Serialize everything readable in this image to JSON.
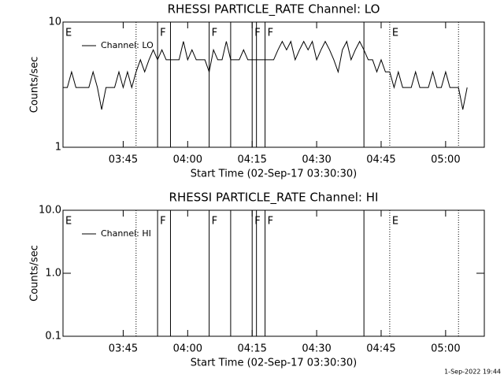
{
  "chart_data": [
    {
      "type": "line",
      "title": "RHESSI PARTICLE_RATE Channel: LO",
      "ylabel": "Counts/sec",
      "xlabel": "Start Time (02-Sep-17 03:30:30)",
      "log_y": true,
      "xlim": [
        "03:31",
        "05:09"
      ],
      "ylim": [
        1,
        10
      ],
      "yticks": [
        1,
        10
      ],
      "xticks": [
        "03:45",
        "04:00",
        "04:15",
        "04:30",
        "04:45",
        "05:00"
      ],
      "legend": "upper left",
      "series": [
        {
          "name": "Channel: LO",
          "color": "#000000",
          "x": [
            "03:31",
            "03:32",
            "03:33",
            "03:34",
            "03:35",
            "03:36",
            "03:37",
            "03:38",
            "03:39",
            "03:40",
            "03:41",
            "03:42",
            "03:43",
            "03:44",
            "03:45",
            "03:46",
            "03:47",
            "03:48",
            "03:49",
            "03:50",
            "03:51",
            "03:52",
            "03:53",
            "03:54",
            "03:55",
            "03:56",
            "03:57",
            "03:58",
            "03:59",
            "04:00",
            "04:01",
            "04:02",
            "04:03",
            "04:04",
            "04:05",
            "04:06",
            "04:07",
            "04:08",
            "04:09",
            "04:10",
            "04:11",
            "04:12",
            "04:13",
            "04:14",
            "04:15",
            "04:16",
            "04:17",
            "04:18",
            "04:19",
            "04:20",
            "04:21",
            "04:22",
            "04:23",
            "04:24",
            "04:25",
            "04:26",
            "04:27",
            "04:28",
            "04:29",
            "04:30",
            "04:31",
            "04:32",
            "04:33",
            "04:34",
            "04:35",
            "04:36",
            "04:37",
            "04:38",
            "04:39",
            "04:40",
            "04:41",
            "04:42",
            "04:43",
            "04:44",
            "04:45",
            "04:46",
            "04:47",
            "04:48",
            "04:49",
            "04:50",
            "04:51",
            "04:52",
            "04:53",
            "04:54",
            "04:55",
            "04:56",
            "04:57",
            "04:58",
            "04:59",
            "05:00",
            "05:01",
            "05:02",
            "05:03",
            "05:04",
            "05:05"
          ],
          "values": [
            3,
            3,
            4,
            3,
            3,
            3,
            3,
            4,
            3,
            2,
            3,
            3,
            3,
            4,
            3,
            4,
            3,
            4,
            5,
            4,
            5,
            6,
            5,
            6,
            5,
            5,
            5,
            5,
            7,
            5,
            6,
            5,
            5,
            5,
            4,
            6,
            5,
            5,
            7,
            5,
            5,
            5,
            6,
            5,
            5,
            5,
            5,
            5,
            5,
            5,
            6,
            7,
            6,
            7,
            5,
            6,
            7,
            6,
            7,
            5,
            6,
            7,
            6,
            5,
            4,
            6,
            7,
            5,
            6,
            7,
            6,
            5,
            5,
            4,
            5,
            4,
            4,
            3,
            4,
            3,
            3,
            3,
            4,
            3,
            3,
            3,
            4,
            3,
            3,
            4,
            3,
            3,
            3,
            2,
            3
          ]
        }
      ],
      "vlines": [
        {
          "x": "03:48",
          "style": "dotted"
        },
        {
          "x": "03:53",
          "style": "solid"
        },
        {
          "x": "03:56",
          "style": "solid"
        },
        {
          "x": "04:05",
          "style": "solid"
        },
        {
          "x": "04:10",
          "style": "solid"
        },
        {
          "x": "04:15",
          "style": "solid"
        },
        {
          "x": "04:16",
          "style": "solid"
        },
        {
          "x": "04:18",
          "style": "solid"
        },
        {
          "x": "04:41",
          "style": "solid"
        },
        {
          "x": "04:47",
          "style": "dotted"
        },
        {
          "x": "05:03",
          "style": "dotted"
        }
      ],
      "annotations": [
        {
          "x": "03:31",
          "label": "E"
        },
        {
          "x": "03:53",
          "label": "F"
        },
        {
          "x": "04:05",
          "label": "F"
        },
        {
          "x": "04:15",
          "label": "F"
        },
        {
          "x": "04:18",
          "label": "F"
        },
        {
          "x": "04:47",
          "label": "E"
        }
      ]
    },
    {
      "type": "line",
      "title": "RHESSI PARTICLE_RATE Channel: HI",
      "ylabel": "Counts/sec",
      "xlabel": "Start Time (02-Sep-17 03:30:30)",
      "log_y": true,
      "xlim": [
        "03:31",
        "05:09"
      ],
      "ylim": [
        0.1,
        10
      ],
      "yticks": [
        0.1,
        {
          "value": 1,
          "label": "1.0"
        },
        {
          "value": 10,
          "label": "10.0"
        }
      ],
      "xticks": [
        "03:45",
        "04:00",
        "04:15",
        "04:30",
        "04:45",
        "05:00"
      ],
      "legend": "upper left",
      "series": [
        {
          "name": "Channel: HI",
          "color": "#000000",
          "x": [],
          "values": []
        }
      ],
      "vlines": [
        {
          "x": "03:48",
          "style": "dotted"
        },
        {
          "x": "03:53",
          "style": "solid"
        },
        {
          "x": "03:56",
          "style": "solid"
        },
        {
          "x": "04:05",
          "style": "solid"
        },
        {
          "x": "04:10",
          "style": "solid"
        },
        {
          "x": "04:15",
          "style": "solid"
        },
        {
          "x": "04:16",
          "style": "solid"
        },
        {
          "x": "04:18",
          "style": "solid"
        },
        {
          "x": "04:41",
          "style": "solid"
        },
        {
          "x": "04:47",
          "style": "dotted"
        },
        {
          "x": "05:03",
          "style": "dotted"
        }
      ],
      "annotations": [
        {
          "x": "03:31",
          "label": "E"
        },
        {
          "x": "03:53",
          "label": "F"
        },
        {
          "x": "04:05",
          "label": "F"
        },
        {
          "x": "04:15",
          "label": "F"
        },
        {
          "x": "04:18",
          "label": "F"
        },
        {
          "x": "04:47",
          "label": "E"
        }
      ]
    }
  ],
  "footer": "1-Sep-2022 19:44"
}
